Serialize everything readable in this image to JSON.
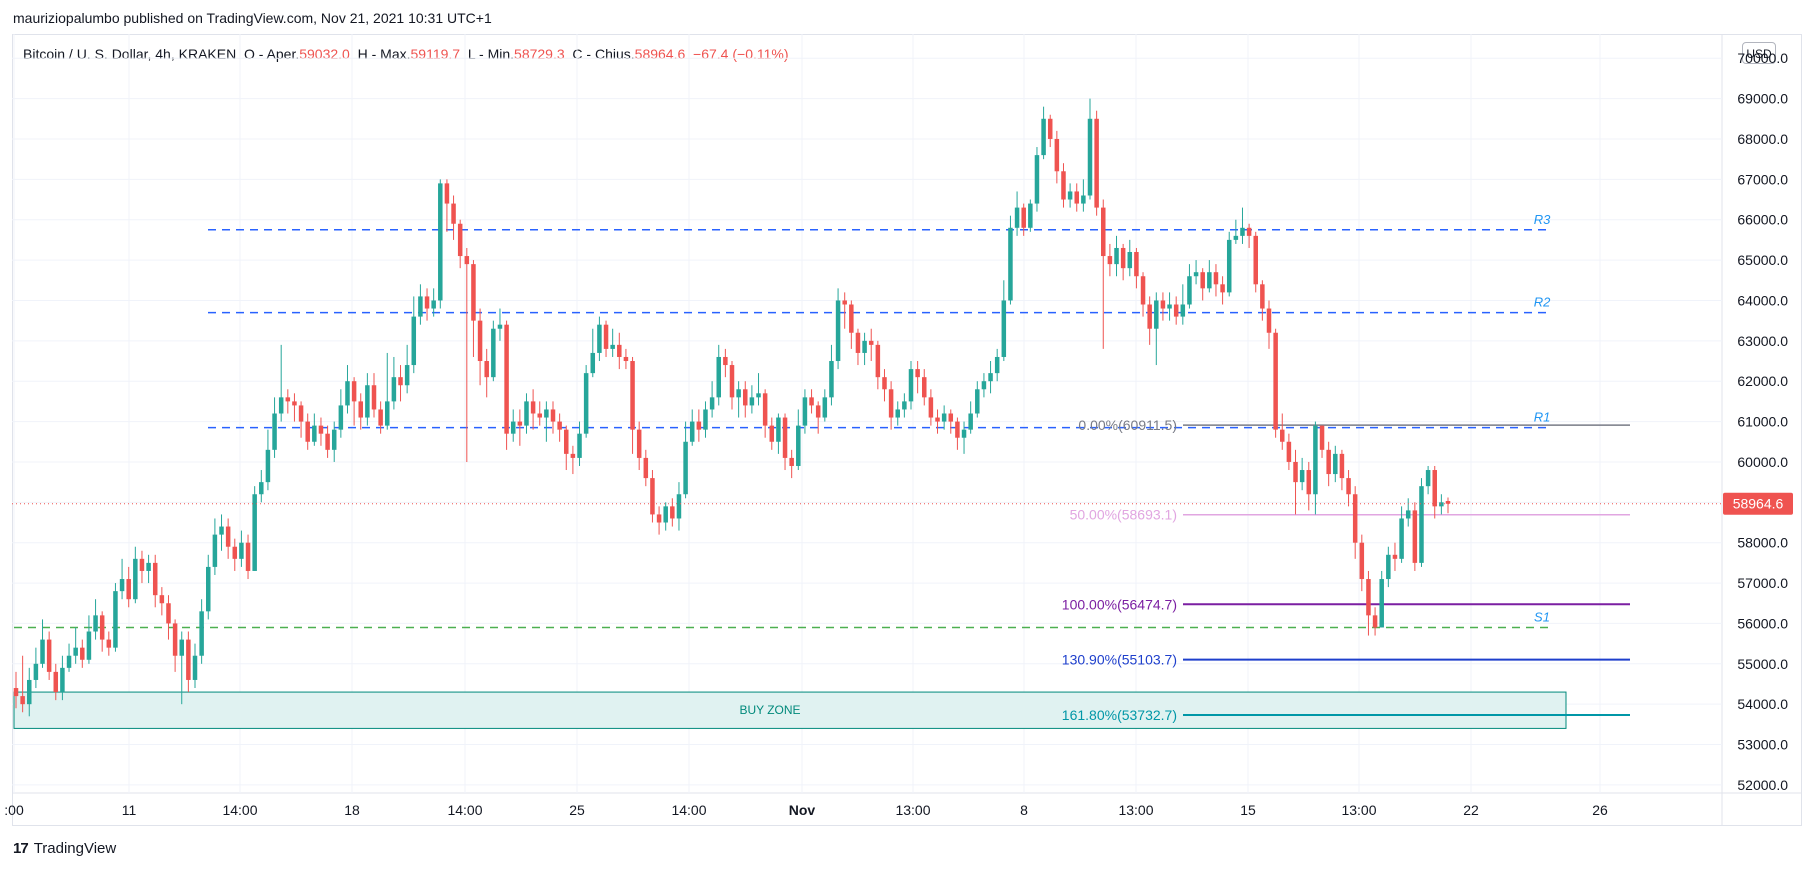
{
  "header": {
    "published": "mauriziopalumbo published on TradingView.com, Nov 21, 2021 10:31 UTC+1"
  },
  "legend": {
    "symbol": "Bitcoin / U. S. Dollar, 4h, KRAKEN",
    "o_label": "O - Aper.",
    "o": "59032.0",
    "h_label": "H - Max.",
    "h": "59119.7",
    "l_label": "L - Min.",
    "l": "58729.3",
    "c_label": "C - Chius.",
    "c": "58964.6",
    "change": "−67.4 (−0.11%)"
  },
  "currency_button": "USD",
  "brand": {
    "name": "TradingView",
    "logo": "17"
  },
  "colors": {
    "up": "#26a69a",
    "down": "#ef5350",
    "resistance": "#2962ff",
    "support": "#4caf50",
    "zone": "#00897b",
    "fib0": "#787b86",
    "fib50": "#e1a6e1",
    "fib100": "#7b1fa2",
    "fib130": "#1e3fcc",
    "fib161": "#0097a7"
  },
  "chart_data": {
    "type": "candlestick",
    "timeframe": "4h",
    "y_range": [
      51800,
      70600
    ],
    "y_ticks": [
      "70000.0",
      "69000.0",
      "68000.0",
      "67000.0",
      "66000.0",
      "65000.0",
      "64000.0",
      "63000.0",
      "62000.0",
      "61000.0",
      "60000.0",
      "59000.0",
      "58000.0",
      "57000.0",
      "56000.0",
      "55000.0",
      "54000.0",
      "53000.0",
      "52000.0"
    ],
    "x_ticks": [
      ":00",
      "11",
      "14:00",
      "18",
      "14:00",
      "25",
      "14:00",
      "Nov",
      "13:00",
      "8",
      "13:00",
      "15",
      "13:00",
      "22",
      "26"
    ],
    "last_price": "58964.6",
    "last_price_value": 58964.6,
    "levels": [
      {
        "label": "R3",
        "price": 65750
      },
      {
        "label": "R2",
        "price": 63700
      },
      {
        "label": "R1",
        "price": 60850
      },
      {
        "label": "S1",
        "price": 55900
      }
    ],
    "fibonacci": [
      {
        "label": "0.00%(60911.5)",
        "price": 60911.5
      },
      {
        "label": "50.00%(58693.1)",
        "price": 58693.1
      },
      {
        "label": "100.00%(56474.7)",
        "price": 56474.7
      },
      {
        "label": "130.90%(55103.7)",
        "price": 55103.7
      },
      {
        "label": "161.80%(53732.7)",
        "price": 53732.7
      }
    ],
    "zone": {
      "label": "BUY ZONE",
      "top": 54300,
      "bottom": 53400
    },
    "candles": [
      [
        54400,
        54200,
        54800,
        53900
      ],
      [
        54200,
        54000,
        55200,
        53800
      ],
      [
        54000,
        54600,
        54900,
        53700
      ],
      [
        54600,
        55000,
        55400,
        54400
      ],
      [
        55000,
        55600,
        56100,
        54900
      ],
      [
        55600,
        54800,
        55800,
        54600
      ],
      [
        54800,
        54300,
        55000,
        54100
      ],
      [
        54300,
        54900,
        55200,
        54100
      ],
      [
        54900,
        55200,
        55500,
        54800
      ],
      [
        55200,
        55400,
        55900,
        55000
      ],
      [
        55400,
        55100,
        55600,
        54900
      ],
      [
        55100,
        55800,
        56200,
        55000
      ],
      [
        55800,
        56200,
        56600,
        55600
      ],
      [
        56200,
        55600,
        56300,
        55300
      ],
      [
        55600,
        55400,
        55800,
        55200
      ],
      [
        55400,
        56800,
        57000,
        55300
      ],
      [
        56800,
        57100,
        57600,
        56600
      ],
      [
        57100,
        56600,
        57400,
        56400
      ],
      [
        56600,
        57600,
        57900,
        56500
      ],
      [
        57600,
        57300,
        57800,
        57000
      ],
      [
        57300,
        57500,
        57700,
        57000
      ],
      [
        57500,
        56700,
        57700,
        56400
      ],
      [
        56700,
        56500,
        56900,
        56200
      ],
      [
        56500,
        56000,
        56700,
        55600
      ],
      [
        56000,
        55200,
        56100,
        54800
      ],
      [
        55200,
        55600,
        55800,
        54000
      ],
      [
        55600,
        54600,
        55800,
        54300
      ],
      [
        54600,
        55200,
        55500,
        54400
      ],
      [
        55200,
        56300,
        56600,
        55000
      ],
      [
        56300,
        57400,
        57700,
        56100
      ],
      [
        57400,
        58200,
        58600,
        57200
      ],
      [
        58200,
        58400,
        58700,
        57800
      ],
      [
        58400,
        57900,
        58600,
        57600
      ],
      [
        57900,
        57600,
        58100,
        57300
      ],
      [
        57600,
        58000,
        58300,
        57400
      ],
      [
        58000,
        57300,
        58200,
        57100
      ],
      [
        57300,
        59200,
        59400,
        57300
      ],
      [
        59200,
        59500,
        59800,
        59000
      ],
      [
        59500,
        60300,
        60800,
        59300
      ],
      [
        60300,
        61200,
        61600,
        60100
      ],
      [
        61200,
        61600,
        62900,
        61000
      ],
      [
        61600,
        61500,
        61800,
        61200
      ],
      [
        61500,
        61400,
        61700,
        61000
      ],
      [
        61400,
        61000,
        61500,
        60600
      ],
      [
        61000,
        60500,
        61200,
        60300
      ],
      [
        60500,
        60900,
        61200,
        60400
      ],
      [
        60900,
        60700,
        61100,
        60400
      ],
      [
        60700,
        60300,
        60900,
        60100
      ],
      [
        60300,
        60800,
        61000,
        60000
      ],
      [
        60800,
        61400,
        61800,
        60600
      ],
      [
        61400,
        62000,
        62400,
        61200
      ],
      [
        62000,
        61500,
        62100,
        60900
      ],
      [
        61500,
        61100,
        61700,
        60800
      ],
      [
        61100,
        61900,
        62200,
        60900
      ],
      [
        61900,
        61300,
        62200,
        61100
      ],
      [
        61300,
        60900,
        61500,
        60700
      ],
      [
        60900,
        61500,
        62700,
        60800
      ],
      [
        61500,
        62100,
        62600,
        61300
      ],
      [
        62100,
        61900,
        62400,
        61500
      ],
      [
        61900,
        62400,
        62900,
        61700
      ],
      [
        62400,
        63600,
        64100,
        62200
      ],
      [
        63600,
        64100,
        64400,
        63400
      ],
      [
        64100,
        63800,
        64300,
        63500
      ],
      [
        63800,
        64000,
        64300,
        63600
      ],
      [
        64000,
        66900,
        67000,
        63800
      ],
      [
        66900,
        66400,
        67000,
        65700
      ],
      [
        66400,
        65900,
        66600,
        65500
      ],
      [
        65900,
        65100,
        66000,
        64800
      ],
      [
        65100,
        64900,
        65300,
        60000
      ],
      [
        64900,
        63500,
        65000,
        62600
      ],
      [
        63500,
        62500,
        63800,
        61900
      ],
      [
        62500,
        62100,
        62800,
        61600
      ],
      [
        62100,
        63300,
        63500,
        62000
      ],
      [
        63300,
        63400,
        63800,
        63000
      ],
      [
        63400,
        60700,
        63500,
        60300
      ],
      [
        60700,
        61000,
        61300,
        60500
      ],
      [
        61000,
        60900,
        61300,
        60400
      ],
      [
        60900,
        61500,
        61700,
        60700
      ],
      [
        61500,
        61200,
        61800,
        60800
      ],
      [
        61200,
        61100,
        61500,
        60900
      ],
      [
        61100,
        61300,
        61500,
        60500
      ],
      [
        61300,
        61000,
        61500,
        60700
      ],
      [
        61000,
        60800,
        61200,
        60500
      ],
      [
        60800,
        60200,
        60900,
        59800
      ],
      [
        60200,
        60100,
        60400,
        59700
      ],
      [
        60100,
        60700,
        61000,
        59900
      ],
      [
        60700,
        62200,
        62400,
        60600
      ],
      [
        62200,
        62700,
        63300,
        62100
      ],
      [
        62700,
        63400,
        63600,
        62500
      ],
      [
        63400,
        62800,
        63500,
        62600
      ],
      [
        62800,
        62900,
        63300,
        62600
      ],
      [
        62900,
        62600,
        63200,
        62300
      ],
      [
        62600,
        62500,
        62800,
        62300
      ],
      [
        62500,
        60800,
        62600,
        60200
      ],
      [
        60800,
        60100,
        61000,
        59800
      ],
      [
        60100,
        59600,
        60300,
        59400
      ],
      [
        59600,
        58700,
        59800,
        58500
      ],
      [
        58700,
        58500,
        58900,
        58200
      ],
      [
        58500,
        58900,
        59000,
        58300
      ],
      [
        58900,
        58600,
        59100,
        58400
      ],
      [
        58600,
        59200,
        59500,
        58300
      ],
      [
        59200,
        60500,
        61000,
        59100
      ],
      [
        60500,
        61000,
        61300,
        60400
      ],
      [
        61000,
        60800,
        61300,
        60500
      ],
      [
        60800,
        61300,
        61500,
        60600
      ],
      [
        61300,
        61600,
        62000,
        61100
      ],
      [
        61600,
        62600,
        62900,
        61400
      ],
      [
        62600,
        62400,
        62800,
        62100
      ],
      [
        62400,
        61600,
        62500,
        61300
      ],
      [
        61600,
        61800,
        62000,
        61100
      ],
      [
        61800,
        61400,
        62000,
        61100
      ],
      [
        61400,
        61600,
        61900,
        61200
      ],
      [
        61600,
        61700,
        62200,
        61400
      ],
      [
        61700,
        60900,
        61800,
        60600
      ],
      [
        60900,
        60500,
        61100,
        60300
      ],
      [
        60500,
        61100,
        61200,
        60200
      ],
      [
        61100,
        60100,
        61200,
        59800
      ],
      [
        60100,
        59900,
        60300,
        59600
      ],
      [
        59900,
        60900,
        61300,
        59800
      ],
      [
        60900,
        61600,
        61800,
        60700
      ],
      [
        61600,
        61400,
        61800,
        61200
      ],
      [
        61400,
        61100,
        61500,
        60700
      ],
      [
        61100,
        61600,
        61800,
        61000
      ],
      [
        61600,
        62500,
        62900,
        61400
      ],
      [
        62500,
        64000,
        64300,
        62300
      ],
      [
        64000,
        63900,
        64200,
        63300
      ],
      [
        63900,
        63200,
        64000,
        62800
      ],
      [
        63200,
        62700,
        63300,
        62400
      ],
      [
        62700,
        63000,
        63200,
        62400
      ],
      [
        63000,
        62900,
        63300,
        62500
      ],
      [
        62900,
        62100,
        63000,
        61800
      ],
      [
        62100,
        61800,
        62300,
        61500
      ],
      [
        61800,
        61100,
        62000,
        60800
      ],
      [
        61100,
        61300,
        61500,
        60900
      ],
      [
        61300,
        61500,
        61700,
        61100
      ],
      [
        61500,
        62300,
        62500,
        61300
      ],
      [
        62300,
        62100,
        62500,
        61700
      ],
      [
        62100,
        61600,
        62300,
        61400
      ],
      [
        61600,
        61100,
        61800,
        60900
      ],
      [
        61100,
        61000,
        61300,
        60700
      ],
      [
        61000,
        61200,
        61400,
        60800
      ],
      [
        61200,
        61000,
        61300,
        60700
      ],
      [
        61000,
        60600,
        61100,
        60300
      ],
      [
        60600,
        60800,
        61000,
        60200
      ],
      [
        60800,
        61200,
        61500,
        60700
      ],
      [
        61200,
        61800,
        62000,
        61100
      ],
      [
        61800,
        62000,
        62200,
        61600
      ],
      [
        62000,
        62200,
        62500,
        61700
      ],
      [
        62200,
        62600,
        62800,
        62000
      ],
      [
        62600,
        64000,
        64500,
        62500
      ],
      [
        64000,
        65800,
        66100,
        63900
      ],
      [
        65800,
        66300,
        66700,
        65600
      ],
      [
        66300,
        65800,
        66400,
        65600
      ],
      [
        65800,
        66400,
        66500,
        65700
      ],
      [
        66400,
        67600,
        67800,
        66200
      ],
      [
        67600,
        68500,
        68800,
        67500
      ],
      [
        68500,
        68000,
        68600,
        67800
      ],
      [
        68000,
        67200,
        68200,
        66900
      ],
      [
        67200,
        66500,
        67400,
        66300
      ],
      [
        66500,
        66700,
        66900,
        66300
      ],
      [
        66700,
        66400,
        66900,
        66200
      ],
      [
        66400,
        66600,
        67000,
        66200
      ],
      [
        66600,
        68500,
        69000,
        66500
      ],
      [
        68500,
        66300,
        68700,
        66100
      ],
      [
        66300,
        65100,
        66500,
        62800
      ],
      [
        65100,
        64900,
        65400,
        64600
      ],
      [
        64900,
        65300,
        65600,
        64600
      ],
      [
        65300,
        64800,
        65400,
        64500
      ],
      [
        64800,
        65200,
        65500,
        64600
      ],
      [
        65200,
        64600,
        65300,
        64300
      ],
      [
        64600,
        63900,
        64700,
        63600
      ],
      [
        63900,
        63300,
        64100,
        62900
      ],
      [
        63300,
        64000,
        64200,
        62400
      ],
      [
        64000,
        63800,
        64200,
        63500
      ],
      [
        63800,
        63900,
        64200,
        63500
      ],
      [
        63900,
        63600,
        64100,
        63400
      ],
      [
        63600,
        63900,
        64400,
        63400
      ],
      [
        63900,
        64600,
        64900,
        63800
      ],
      [
        64600,
        64700,
        65000,
        64400
      ],
      [
        64700,
        64300,
        64800,
        64000
      ],
      [
        64300,
        64700,
        65000,
        64200
      ],
      [
        64700,
        64400,
        64900,
        64100
      ],
      [
        64400,
        64200,
        64600,
        63900
      ],
      [
        64200,
        65500,
        65700,
        64100
      ],
      [
        65500,
        65600,
        66000,
        65400
      ],
      [
        65600,
        65800,
        66300,
        65400
      ],
      [
        65800,
        65600,
        65900,
        65300
      ],
      [
        65600,
        64400,
        65700,
        64200
      ],
      [
        64400,
        63800,
        64500,
        63500
      ],
      [
        63800,
        63200,
        64000,
        62800
      ],
      [
        63200,
        60800,
        63300,
        60600
      ],
      [
        60800,
        60500,
        61200,
        60300
      ],
      [
        60500,
        60000,
        60700,
        59800
      ],
      [
        60000,
        59500,
        60300,
        58700
      ],
      [
        59500,
        59800,
        60100,
        59300
      ],
      [
        59800,
        59200,
        60000,
        58800
      ],
      [
        59200,
        60900,
        61000,
        58700
      ],
      [
        60900,
        60300,
        60900,
        60100
      ],
      [
        60300,
        59700,
        60500,
        59400
      ],
      [
        59700,
        60200,
        60400,
        59500
      ],
      [
        60200,
        59600,
        60300,
        59300
      ],
      [
        59600,
        59200,
        59800,
        58900
      ],
      [
        59200,
        58000,
        59400,
        57600
      ],
      [
        58000,
        57100,
        58200,
        56800
      ],
      [
        57100,
        56200,
        57300,
        55700
      ],
      [
        56200,
        55900,
        56400,
        55700
      ],
      [
        55900,
        57100,
        57300,
        55900
      ],
      [
        57100,
        57700,
        57900,
        56900
      ],
      [
        57700,
        57600,
        58000,
        57300
      ],
      [
        57600,
        58600,
        58900,
        57500
      ],
      [
        58600,
        58800,
        59100,
        58400
      ],
      [
        58800,
        57500,
        59000,
        57300
      ],
      [
        57500,
        59400,
        59600,
        57400
      ],
      [
        59400,
        59800,
        59900,
        59200
      ],
      [
        59800,
        58900,
        59900,
        58600
      ],
      [
        58900,
        59000,
        59200,
        58700
      ],
      [
        59032,
        58964.6,
        59119.7,
        58729.3
      ]
    ]
  }
}
